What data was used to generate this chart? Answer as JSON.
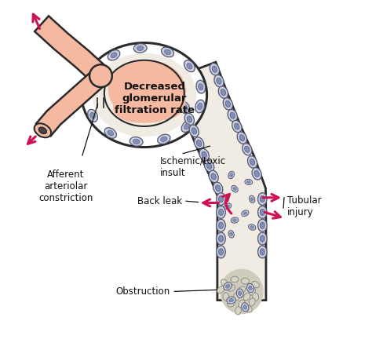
{
  "bg_color": "#ffffff",
  "labels": {
    "decreased_gfr": "Decreased\nglomerular\nfiltration rate",
    "afferent": "Afferent\narteriolar\nconstriction",
    "ischemic": "Ischemic/toxic\ninsult",
    "back_leak": "Back leak",
    "tubular_injury": "Tubular\ninjury",
    "obstruction": "Obstruction"
  },
  "colors": {
    "vessel_fill": "#f5b8a0",
    "vessel_outline": "#2a2a2a",
    "tubule_fill": "#f0ece4",
    "tubule_outline": "#2a2a2a",
    "cell_fill": "#c8cedf",
    "cell_outline": "#555570",
    "cell_nucleus": "#8090b8",
    "glom_fill": "#f5b8a0",
    "glom_outline": "#2a2a2a",
    "debris_fill": "#d0ccbb",
    "debris_cell_fill": "#c8cedf",
    "debris_outline": "#888878",
    "arrow_color": "#cc1155",
    "text_color": "#111111",
    "label_line_color": "#222222"
  },
  "figsize": [
    4.74,
    4.46
  ],
  "dpi": 100
}
